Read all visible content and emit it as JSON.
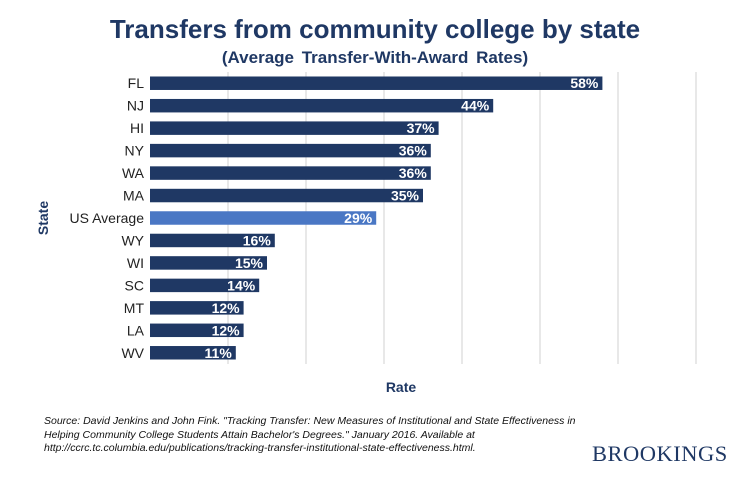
{
  "title": "Transfers from community college by state",
  "subtitle": "(Average Transfer-With-Award Rates)",
  "source": "Source: David Jenkins and John Fink. \"Tracking Transfer: New Measures of Institutional and State Effectiveness in Helping Community College Students Attain Bachelor's Degrees.\"  January 2016. Available at http://ccrc.tc.columbia.edu/publications/tracking-transfer-institutional-state-effectiveness.html.",
  "brand": "BROOKINGS",
  "colors": {
    "bar": "#1f3864",
    "highlight": "#4a77c4",
    "grid": "#d0d0d0",
    "text": "#1f3864"
  },
  "chart_data": {
    "type": "bar",
    "orientation": "horizontal",
    "title": "Transfers from community college by state",
    "subtitle": "(Average Transfer-With-Award Rates)",
    "xlabel": "Rate",
    "ylabel": "State",
    "xlim": [
      0,
      70
    ],
    "grid": true,
    "categories": [
      "FL",
      "NJ",
      "HI",
      "NY",
      "WA",
      "MA",
      "US Average",
      "WY",
      "WI",
      "SC",
      "MT",
      "LA",
      "WV"
    ],
    "values": [
      58,
      44,
      37,
      36,
      36,
      35,
      29,
      16,
      15,
      14,
      12,
      12,
      11
    ],
    "labels": [
      "58%",
      "44%",
      "37%",
      "36%",
      "36%",
      "35%",
      "29%",
      "16%",
      "15%",
      "14%",
      "12%",
      "12%",
      "11%"
    ],
    "highlight": [
      "US Average"
    ]
  }
}
